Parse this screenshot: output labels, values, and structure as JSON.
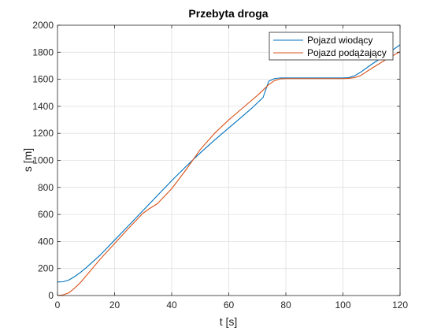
{
  "chart_data": {
    "type": "line",
    "title": "Przebyta droga",
    "xlabel": "t [s]",
    "ylabel": "s [m]",
    "xlim": [
      0,
      120
    ],
    "ylim": [
      0,
      2000
    ],
    "xticks": [
      0,
      20,
      40,
      60,
      80,
      100,
      120
    ],
    "yticks": [
      0,
      200,
      400,
      600,
      800,
      1000,
      1200,
      1400,
      1600,
      1800,
      2000
    ],
    "grid": true,
    "legend_position": "top-right",
    "series": [
      {
        "name": "Pojazd wiodący",
        "color": "#0072BD",
        "x": [
          0,
          2,
          4,
          6,
          8,
          10,
          15,
          20,
          25,
          30,
          35,
          40,
          45,
          50,
          55,
          60,
          65,
          68,
          70,
          72,
          74,
          76,
          78,
          80,
          85,
          90,
          95,
          100,
          102,
          104,
          106,
          110,
          115,
          120
        ],
        "y": [
          100,
          102,
          115,
          140,
          170,
          205,
          300,
          410,
          520,
          630,
          740,
          850,
          955,
          1055,
          1150,
          1240,
          1330,
          1385,
          1425,
          1465,
          1585,
          1605,
          1610,
          1610,
          1610,
          1610,
          1610,
          1610,
          1612,
          1625,
          1650,
          1710,
          1780,
          1855
        ]
      },
      {
        "name": "Pojazd podążający",
        "color": "#D95319",
        "x": [
          0,
          2,
          4,
          6,
          8,
          10,
          15,
          20,
          25,
          30,
          32,
          35,
          40,
          45,
          50,
          55,
          60,
          65,
          70,
          72,
          74,
          76,
          78,
          80,
          85,
          90,
          95,
          100,
          102,
          104,
          106,
          110,
          115,
          120
        ],
        "y": [
          0,
          5,
          20,
          55,
          95,
          145,
          270,
          385,
          500,
          610,
          640,
          680,
          790,
          930,
          1080,
          1200,
          1300,
          1390,
          1480,
          1520,
          1560,
          1590,
          1603,
          1605,
          1605,
          1605,
          1605,
          1605,
          1607,
          1612,
          1625,
          1680,
          1745,
          1805
        ]
      }
    ]
  }
}
